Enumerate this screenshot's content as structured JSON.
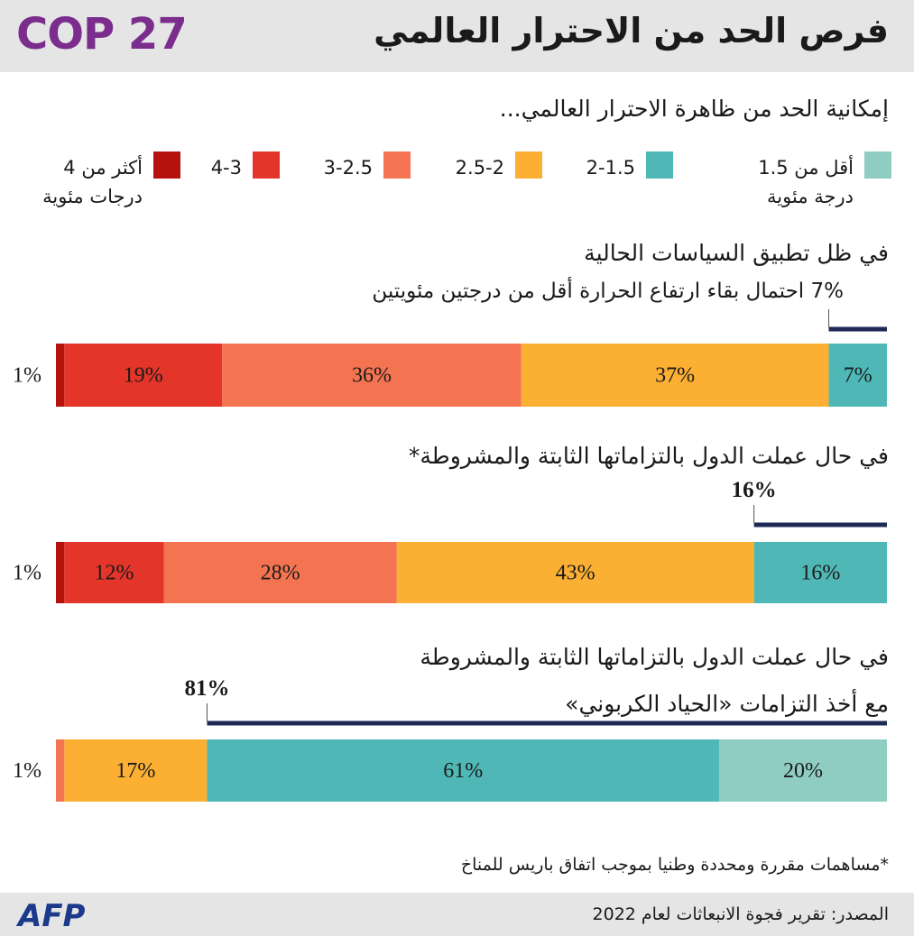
{
  "logo": "COP 27",
  "agency": "AFP",
  "chart_data": {
    "type": "stacked-bar",
    "title": "فرص الحد من الاحترار العالمي",
    "subtitle": "إمكانية الحد من ظاهرة الاحترار العالمي...",
    "categories": [
      "في ظل تطبيق السياسات الحالية",
      "في حال عملت الدول بالتزاماتها الثابتة والمشروطة*",
      "في حال عملت الدول بالتزاماتها الثابتة والمشروطة\nمع أخذ التزامات «الحياد الكربوني»"
    ],
    "series": [
      {
        "name": "أقل من 1.5\nدرجة مئوية",
        "color": "#8fcdc3",
        "values": [
          null,
          null,
          20
        ],
        "value_labels": [
          null,
          null,
          "20%"
        ]
      },
      {
        "name": "2-1.5",
        "color": "#4fb8b6",
        "values": [
          7,
          16,
          61
        ],
        "value_labels": [
          "7%",
          "16%",
          "61%"
        ]
      },
      {
        "name": "2.5-2",
        "color": "#fbb034",
        "values": [
          37,
          43,
          17
        ],
        "value_labels": [
          "37%",
          "43%",
          "17%"
        ]
      },
      {
        "name": "3-2.5",
        "color": "#f47452",
        "values": [
          36,
          28,
          1
        ],
        "value_labels": [
          "36%",
          "28%",
          "1%"
        ]
      },
      {
        "name": "4-3",
        "color": "#e4352a",
        "values": [
          19,
          12,
          null
        ],
        "value_labels": [
          "19%",
          "12%",
          null
        ]
      },
      {
        "name": "أكثر من 4\nدرجات مئوية",
        "color": "#b5120e",
        "values": [
          1,
          1,
          null
        ],
        "value_labels": [
          "1%",
          "1%",
          null
        ]
      }
    ],
    "annotations": [
      {
        "label": "7% احتمال بقاء ارتفاع الحرارة أقل من درجتين مئويتين",
        "value": 7
      },
      {
        "label": "16%",
        "value": 16
      },
      {
        "label": "81%",
        "value": 81
      }
    ],
    "footnote": "*مساهمات مقررة ومحددة وطنيا بموجب اتفاق باريس للمناخ",
    "source": "المصدر: تقرير فجوة الانبعاثات لعام 2022"
  }
}
